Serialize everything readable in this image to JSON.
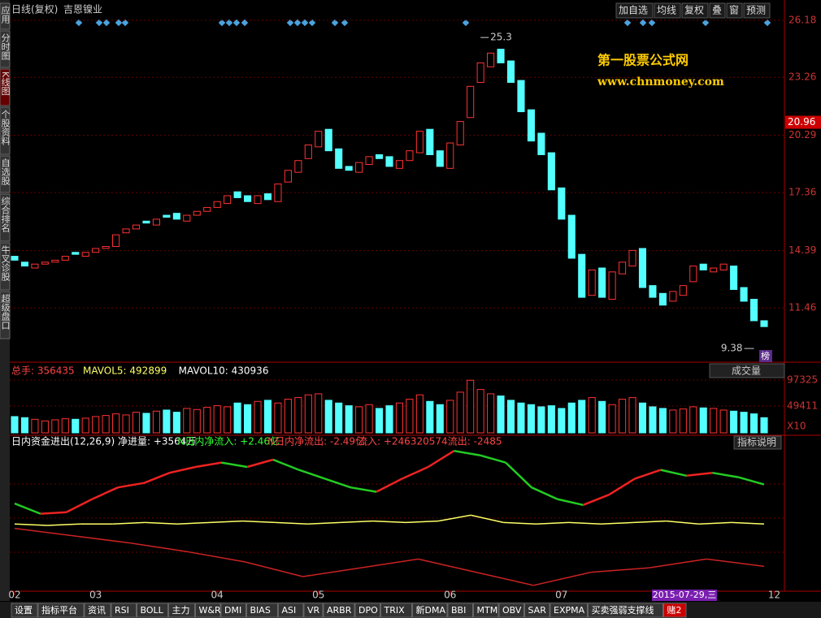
{
  "window": {
    "title": "日线(复权)",
    "stock": "吉恩镍业",
    "buttons": [
      "加自选",
      "均线",
      "复权",
      "叠",
      "窗",
      "预测"
    ]
  },
  "sidebar": [
    "应用",
    "分时图",
    "K线图",
    "个股资料",
    "自选股",
    "综合排名",
    "牛叉诊股",
    "超级盘口"
  ],
  "watermark": {
    "name": "第一股票公式网",
    "url": "www.chnmoney.com"
  },
  "chart_data": {
    "type": "candlestick",
    "open": [
      14.1,
      13.8,
      13.5,
      13.7,
      13.8,
      13.9,
      14.3,
      14.1,
      14.3,
      14.5,
      14.6,
      15.3,
      15.5,
      15.9,
      15.7,
      16.2,
      16.3,
      15.9,
      16.2,
      16.4,
      16.6,
      16.8,
      17.4,
      17.2,
      16.8,
      17.3,
      16.9,
      17.9,
      18.4,
      19.1,
      19.7,
      20.6,
      19.6,
      18.7,
      18.4,
      18.8,
      19.3,
      19.2,
      18.6,
      19.0,
      19.4,
      20.6,
      19.5,
      18.6,
      19.8,
      21.2,
      23.0,
      23.8,
      24.7,
      24.1,
      23.1,
      21.6,
      20.4,
      19.4,
      17.6,
      16.2,
      14.2,
      12.1,
      13.5,
      11.9,
      13.2,
      13.6,
      14.5,
      12.6,
      12.2,
      11.8,
      12.1,
      12.8,
      13.7,
      13.3,
      13.4,
      13.6,
      12.5,
      11.9,
      10.8
    ],
    "close": [
      13.9,
      13.6,
      13.7,
      13.8,
      13.9,
      14.1,
      14.2,
      14.3,
      14.5,
      14.6,
      15.2,
      15.5,
      15.7,
      15.8,
      16.0,
      16.1,
      16.0,
      16.2,
      16.4,
      16.6,
      16.9,
      17.2,
      17.1,
      16.9,
      17.2,
      17.0,
      17.8,
      18.5,
      19.0,
      19.8,
      20.5,
      19.5,
      18.6,
      18.5,
      18.9,
      19.2,
      19.1,
      18.7,
      19.0,
      19.5,
      20.5,
      19.3,
      18.7,
      19.9,
      21.0,
      22.8,
      24.0,
      24.5,
      24.0,
      23.0,
      21.5,
      20.0,
      19.3,
      17.5,
      16.0,
      14.0,
      12.0,
      13.4,
      12.0,
      13.3,
      13.8,
      14.4,
      12.5,
      12.0,
      11.6,
      12.3,
      12.6,
      13.6,
      13.4,
      13.5,
      13.7,
      12.4,
      11.8,
      10.8,
      10.5
    ],
    "ylim": [
      8.72,
      26.47
    ],
    "yticks": [
      11.46,
      14.39,
      17.36,
      20.29,
      23.26,
      26.18
    ],
    "last_price": 20.96,
    "high_label": 25.3,
    "low_label": 9.38,
    "high_index": 46,
    "low_index": 73,
    "low_tag": "榜",
    "xticks": [
      {
        "value": 0,
        "label": "02"
      },
      {
        "value": 8,
        "label": "03"
      },
      {
        "value": 20,
        "label": "04"
      },
      {
        "value": 30,
        "label": "05"
      },
      {
        "value": 43,
        "label": "06"
      },
      {
        "value": 54,
        "label": "07"
      },
      {
        "value": 75,
        "label": "12"
      }
    ],
    "date_label": "2015-07-29,三",
    "volume": {
      "header": [
        "总手: 356435",
        "MAVOL5: 492899",
        "MAVOL10: 430936"
      ],
      "selector": "成交量",
      "unit": "X10",
      "values": [
        30000,
        28000,
        25000,
        22000,
        24000,
        26000,
        25000,
        27000,
        30000,
        32000,
        35000,
        33000,
        38000,
        36000,
        40000,
        42000,
        38000,
        45000,
        43000,
        47000,
        50000,
        48000,
        55000,
        52000,
        58000,
        60000,
        55000,
        62000,
        65000,
        70000,
        72000,
        60000,
        55000,
        50000,
        48000,
        52000,
        45000,
        50000,
        55000,
        62000,
        70000,
        58000,
        52000,
        60000,
        75000,
        97000,
        80000,
        72000,
        68000,
        60000,
        55000,
        52000,
        48000,
        50000,
        45000,
        55000,
        60000,
        65000,
        58000,
        52000,
        62000,
        65000,
        55000,
        48000,
        45000,
        42000,
        44000,
        48000,
        46000,
        45000,
        42000,
        40000,
        38000,
        35000,
        28000
      ],
      "ylim": [
        0,
        101800
      ],
      "yticks": [
        49411,
        97325
      ]
    },
    "indicator": {
      "header": [
        "日内资金进出(12,26,9) 净进量: +3564万",
        "N日内净流入: +2.46亿",
        "N日内净流出: -2.49亿",
        "流入: +246320574",
        "流出: -2485"
      ],
      "button": "指标说明",
      "ylim": [
        0,
        100
      ],
      "series": [
        {
          "name": "main",
          "values": [
            60,
            53,
            54,
            63,
            71,
            74,
            81,
            85,
            88,
            85,
            90,
            83,
            77,
            71,
            68,
            77,
            85,
            96,
            93,
            88,
            71,
            63,
            59,
            66,
            77,
            83,
            79,
            81,
            78,
            73
          ]
        },
        {
          "name": "signal",
          "color": "#ffff66",
          "values": [
            46,
            45,
            46,
            46,
            47,
            46,
            47,
            48,
            47,
            46,
            47,
            48,
            47,
            48,
            52,
            47,
            46,
            47,
            46,
            47,
            48,
            46,
            47,
            46
          ]
        },
        {
          "name": "base",
          "color": "#cc2222",
          "values": [
            43,
            38,
            33,
            27,
            20,
            10,
            16,
            22,
            13,
            4,
            13,
            16,
            22,
            17
          ]
        }
      ]
    }
  },
  "tabs": [
    "设置",
    "指标平台",
    "资讯",
    "RSI",
    "BOLL",
    "主力",
    "W&R",
    "DMI",
    "BIAS",
    "ASI",
    "VR",
    "ARBR",
    "DPO",
    "TRIX",
    "新DMA",
    "BBI",
    "MTM",
    "OBV",
    "SAR",
    "EXPMA",
    "买卖强弱支撑线",
    "赌2"
  ]
}
